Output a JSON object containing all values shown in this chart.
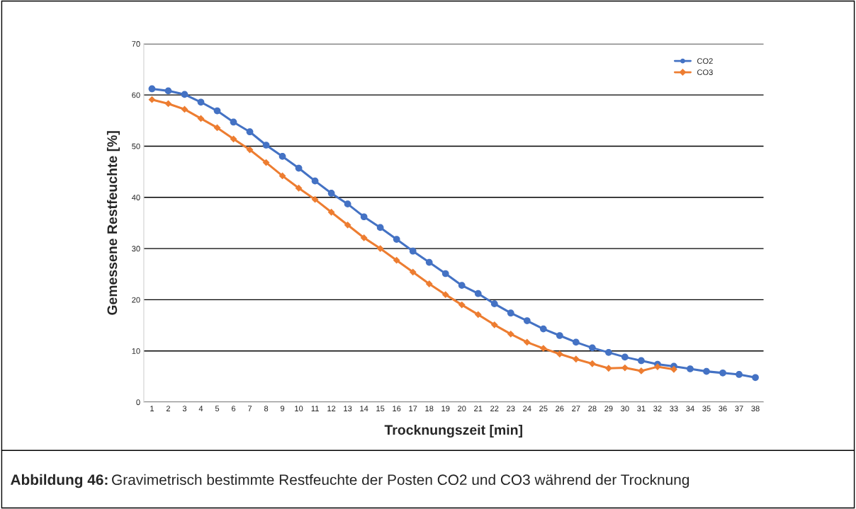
{
  "chart_data": {
    "type": "line",
    "xlabel": "Trocknungszeit [min]",
    "ylabel": "Gemessene Restfeuchte [%]",
    "categories": [
      "1",
      "2",
      "3",
      "4",
      "5",
      "6",
      "7",
      "8",
      "9",
      "10",
      "11",
      "12",
      "13",
      "14",
      "15",
      "16",
      "17",
      "18",
      "19",
      "20",
      "21",
      "22",
      "23",
      "24",
      "25",
      "26",
      "27",
      "28",
      "29",
      "30",
      "31",
      "32",
      "33",
      "34",
      "35",
      "36",
      "37",
      "38"
    ],
    "series": [
      {
        "name": "CO2",
        "color": "#4472c4",
        "marker": "circle",
        "values": [
          61.2,
          60.8,
          60.1,
          58.6,
          56.9,
          54.7,
          52.8,
          50.2,
          48.0,
          45.7,
          43.2,
          40.8,
          38.7,
          36.2,
          34.1,
          31.8,
          29.5,
          27.3,
          25.1,
          22.8,
          21.2,
          19.2,
          17.4,
          15.9,
          14.3,
          13.0,
          11.7,
          10.6,
          9.7,
          8.8,
          8.1,
          7.4,
          7.0,
          6.5,
          6.0,
          5.7,
          5.4,
          4.8
        ]
      },
      {
        "name": "CO3",
        "color": "#ed7d31",
        "marker": "diamond",
        "values": [
          59.1,
          58.3,
          57.2,
          55.4,
          53.6,
          51.4,
          49.3,
          46.8,
          44.2,
          41.8,
          39.6,
          37.1,
          34.6,
          32.1,
          30.0,
          27.7,
          25.4,
          23.1,
          21.0,
          19.0,
          17.1,
          15.1,
          13.3,
          11.7,
          10.5,
          9.4,
          8.4,
          7.5,
          6.6,
          6.7,
          6.1,
          6.9,
          6.4,
          null,
          null,
          null,
          null,
          null
        ]
      }
    ],
    "ylim": [
      0,
      70
    ],
    "yticks": [
      0,
      10,
      20,
      30,
      40,
      50,
      60,
      70
    ],
    "grid": "y",
    "legend": "top right",
    "annotations": [
      "Abbildung 46:",
      "Gravimetrisch bestimmte Restfeuchte der Posten CO2 und CO3 während der Trocknung"
    ]
  }
}
